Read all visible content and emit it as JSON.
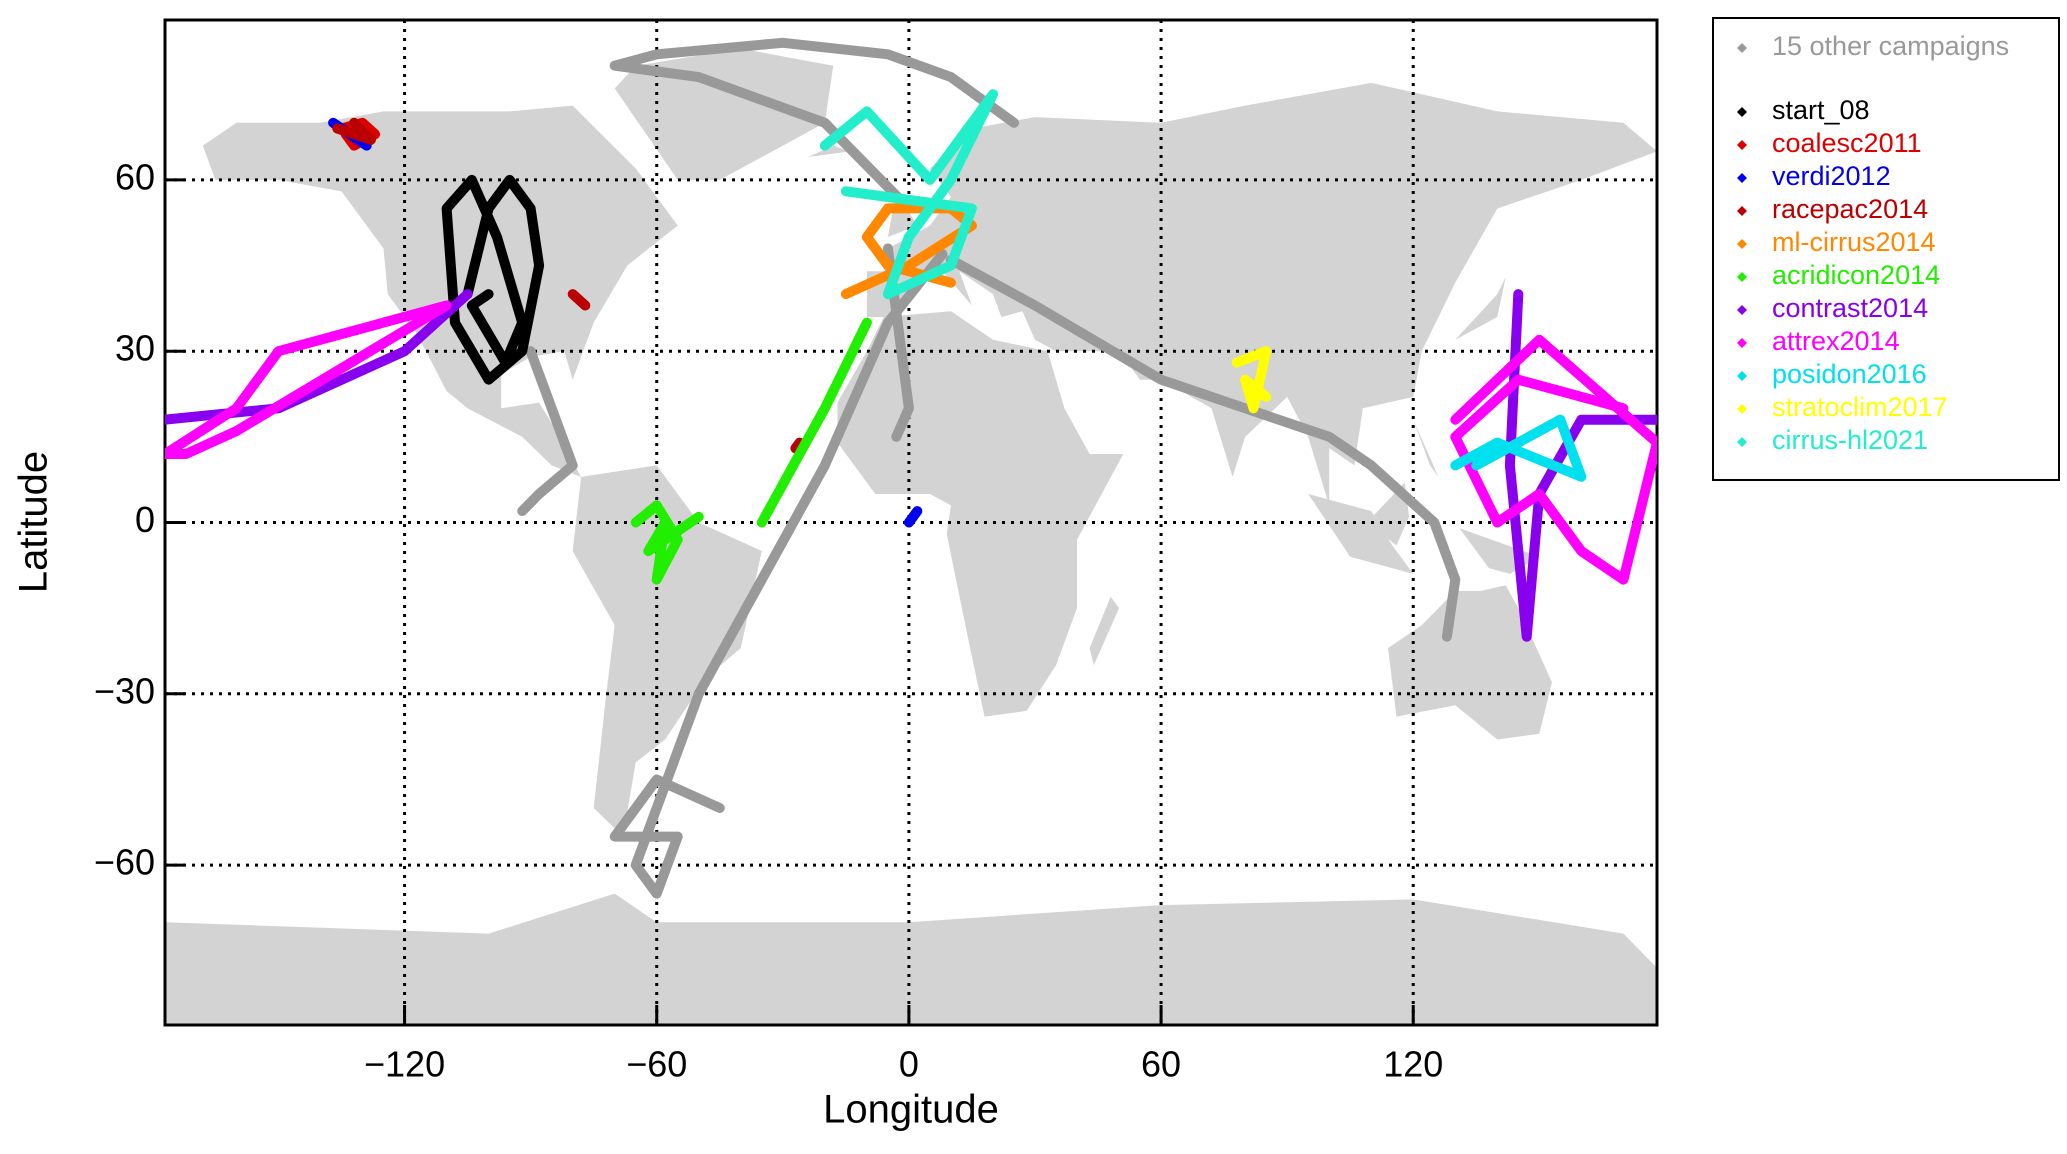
{
  "chart_data": {
    "type": "line",
    "x_label": "Longitude",
    "y_label": "Latitude",
    "xlim": [
      -177,
      178
    ],
    "ylim": [
      -88,
      88
    ],
    "xticks": [
      {
        "value": -120,
        "label": "−120"
      },
      {
        "value": -60,
        "label": "−60"
      },
      0,
      60,
      120
    ],
    "yticks": [
      {
        "value": -60,
        "label": "−60"
      },
      {
        "value": -30,
        "label": "−30"
      },
      0,
      30,
      60
    ],
    "grid": true,
    "legend": "outside-right",
    "series": [
      {
        "name": "15 other campaigns",
        "color": "#999999",
        "x": [
          8,
          -5,
          -20,
          -35,
          -50,
          -60,
          -65,
          -60,
          -55,
          -70,
          -60,
          -45,
          null,
          10,
          30,
          60,
          80,
          100,
          110,
          125,
          130,
          128,
          null,
          0,
          -20,
          -50,
          -70,
          -60,
          -30,
          -5,
          10,
          25,
          null,
          -90,
          -85,
          -80,
          -88,
          -92,
          null,
          -5,
          0,
          -3
        ],
        "values": [
          47,
          35,
          10,
          -10,
          -30,
          -50,
          -60,
          -65,
          -55,
          -55,
          -45,
          -50,
          null,
          46,
          38,
          25,
          20,
          15,
          10,
          0,
          -10,
          -20,
          null,
          55,
          70,
          78,
          80,
          82,
          84,
          82,
          78,
          70,
          null,
          30,
          20,
          10,
          5,
          2,
          null,
          48,
          20,
          15
        ]
      },
      {
        "name": "start_08",
        "color": "#000000",
        "x": [
          -105,
          -100,
          -95,
          -90,
          -88,
          -92,
          -100,
          -108,
          -110,
          -104,
          -98,
          -92,
          -96,
          -104,
          -100
        ],
        "values": [
          40,
          55,
          60,
          55,
          45,
          30,
          25,
          35,
          55,
          60,
          50,
          35,
          28,
          38,
          40
        ]
      },
      {
        "name": "coalesc2011",
        "color": "#dd0000",
        "x": [
          -135,
          -130,
          -127,
          -132,
          -134
        ],
        "values": [
          69,
          70,
          68,
          66,
          68
        ]
      },
      {
        "name": "verdi2012",
        "color": "#0000ee",
        "x": [
          -137,
          -129,
          null,
          0,
          2
        ],
        "values": [
          70,
          66,
          null,
          0,
          2
        ]
      },
      {
        "name": "racepac2014",
        "color": "#bb0000",
        "x": [
          -136,
          -128,
          -132,
          null,
          -80,
          -77,
          null,
          -27,
          -26
        ],
        "values": [
          69,
          67,
          70,
          null,
          40,
          38,
          null,
          13,
          14
        ]
      },
      {
        "name": "ml-cirrus2014",
        "color": "#ff8800",
        "x": [
          -15,
          0,
          15,
          10,
          -5,
          -10,
          -5,
          10
        ],
        "values": [
          40,
          45,
          52,
          55,
          55,
          50,
          45,
          42
        ]
      },
      {
        "name": "acridicon2014",
        "color": "#22ee00",
        "x": [
          -35,
          -20,
          -10,
          null,
          -65,
          -60,
          -55,
          -60,
          -58,
          -62,
          -50
        ],
        "values": [
          0,
          20,
          35,
          null,
          0,
          3,
          -3,
          -10,
          0,
          -5,
          1
        ]
      },
      {
        "name": "contrast2014",
        "color": "#8800ee",
        "x": [
          -177,
          -150,
          -120,
          -105,
          null,
          145,
          143,
          147,
          150,
          160,
          178
        ],
        "values": [
          18,
          20,
          30,
          40,
          null,
          40,
          10,
          -20,
          5,
          18,
          18
        ]
      },
      {
        "name": "attrex2014",
        "color": "#ff00ff",
        "x": [
          -177,
          -160,
          -150,
          -125,
          -110,
          -160,
          -172,
          -177,
          null,
          130,
          150,
          178,
          170,
          160,
          150,
          140,
          130,
          145,
          170
        ],
        "values": [
          12,
          20,
          30,
          35,
          38,
          16,
          12,
          12,
          null,
          18,
          32,
          14,
          -10,
          -5,
          5,
          0,
          15,
          25,
          20
        ]
      },
      {
        "name": "posidon2016",
        "color": "#00e0ee",
        "x": [
          135,
          155,
          160,
          140,
          130
        ],
        "values": [
          10,
          18,
          8,
          14,
          10
        ]
      },
      {
        "name": "stratoclim2017",
        "color": "#ffff00",
        "x": [
          78,
          85,
          82,
          80,
          85
        ],
        "values": [
          28,
          30,
          20,
          25,
          22
        ]
      },
      {
        "name": "cirrus-hl2021",
        "color": "#22eecc",
        "x": [
          -20,
          -10,
          5,
          20,
          10,
          0,
          -5,
          10,
          15,
          -15
        ],
        "values": [
          66,
          72,
          60,
          75,
          60,
          50,
          40,
          45,
          55,
          58
        ]
      }
    ]
  }
}
